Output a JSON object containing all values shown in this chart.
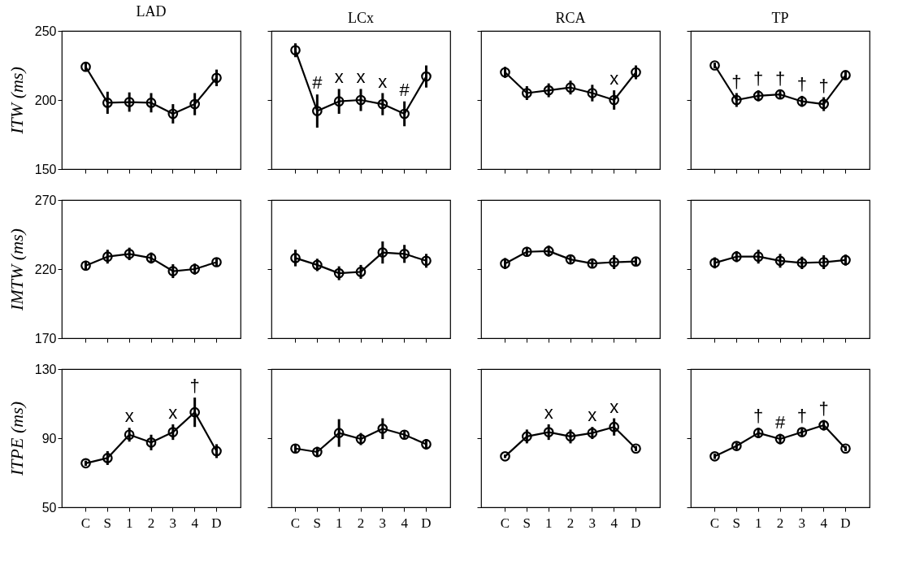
{
  "chart_data": [
    {
      "type": "line",
      "title": "LAD",
      "ylabel": "ITW (ms)",
      "categories": [
        "C",
        "S",
        "1",
        "2",
        "3",
        "4",
        "D"
      ],
      "color": "#000000",
      "marker": "circle",
      "grid": false,
      "tick_labels": "y",
      "ylim": [
        150,
        250
      ],
      "yticks": [
        150,
        200,
        250
      ],
      "values": [
        224,
        198,
        198.5,
        198,
        190,
        197,
        216
      ],
      "errors": [
        3,
        8,
        7,
        7,
        7,
        8,
        6
      ]
    },
    {
      "type": "line",
      "title": "LCx",
      "categories": [
        "C",
        "S",
        "1",
        "2",
        "3",
        "4",
        "D"
      ],
      "color": "#000000",
      "marker": "circle",
      "grid": false,
      "tick_labels": false,
      "ylim": [
        150,
        250
      ],
      "yticks": [
        150,
        200,
        250
      ],
      "values": [
        236,
        192,
        199,
        200,
        197,
        190,
        217
      ],
      "errors": [
        5,
        12,
        9,
        8,
        8,
        9,
        8
      ],
      "annotations": [
        {
          "text": "#",
          "x": "S",
          "y": 192
        },
        {
          "text": "x",
          "x": "1",
          "y": 199
        },
        {
          "text": "x",
          "x": "2",
          "y": 200
        },
        {
          "text": "x",
          "x": "3",
          "y": 197
        },
        {
          "text": "#",
          "x": "4",
          "y": 190
        }
      ]
    },
    {
      "type": "line",
      "title": "RCA",
      "categories": [
        "C",
        "S",
        "1",
        "2",
        "3",
        "4",
        "D"
      ],
      "color": "#000000",
      "marker": "circle",
      "grid": false,
      "tick_labels": false,
      "ylim": [
        150,
        250
      ],
      "yticks": [
        150,
        200,
        250
      ],
      "values": [
        220,
        205,
        207,
        209,
        205,
        200,
        220
      ],
      "errors": [
        4,
        5,
        5,
        5,
        6,
        7,
        5
      ],
      "annotations": [
        {
          "text": "x",
          "x": "4",
          "y": 200
        }
      ]
    },
    {
      "type": "line",
      "title": "TP",
      "categories": [
        "C",
        "S",
        "1",
        "2",
        "3",
        "4",
        "D"
      ],
      "color": "#000000",
      "marker": "circle",
      "grid": false,
      "tick_labels": false,
      "ylim": [
        150,
        250
      ],
      "yticks": [
        150,
        200,
        250
      ],
      "values": [
        225,
        200,
        203,
        204,
        199,
        197,
        218
      ],
      "errors": [
        2,
        5,
        4,
        3,
        4,
        5,
        3
      ],
      "annotations": [
        {
          "text": "†",
          "x": "S",
          "y": 200
        },
        {
          "text": "†",
          "x": "1",
          "y": 203
        },
        {
          "text": "†",
          "x": "2",
          "y": 204
        },
        {
          "text": "†",
          "x": "3",
          "y": 199
        },
        {
          "text": "†",
          "x": "4",
          "y": 197
        }
      ]
    },
    {
      "type": "line",
      "ylabel": "IMTW (ms)",
      "categories": [
        "C",
        "S",
        "1",
        "2",
        "3",
        "4",
        "D"
      ],
      "color": "#000000",
      "marker": "circle",
      "grid": false,
      "tick_labels": "y",
      "ylim": [
        170,
        270
      ],
      "yticks": [
        170,
        220,
        270
      ],
      "values": [
        222.5,
        229,
        231,
        228,
        218.5,
        220,
        225
      ],
      "errors": [
        3.5,
        5,
        4.5,
        4,
        5,
        4,
        3
      ]
    },
    {
      "type": "line",
      "categories": [
        "C",
        "S",
        "1",
        "2",
        "3",
        "4",
        "D"
      ],
      "color": "#000000",
      "marker": "circle",
      "grid": false,
      "tick_labels": false,
      "ylim": [
        170,
        270
      ],
      "yticks": [
        170,
        220,
        270
      ],
      "values": [
        228,
        223,
        217,
        218,
        232,
        231,
        226
      ],
      "errors": [
        6,
        4.5,
        5,
        5,
        8,
        6.5,
        5
      ]
    },
    {
      "type": "line",
      "categories": [
        "C",
        "S",
        "1",
        "2",
        "3",
        "4",
        "D"
      ],
      "color": "#000000",
      "marker": "circle",
      "grid": false,
      "tick_labels": false,
      "ylim": [
        170,
        270
      ],
      "yticks": [
        170,
        220,
        270
      ],
      "values": [
        224,
        232.5,
        233,
        227,
        224,
        225,
        225.5
      ],
      "errors": [
        4,
        3.5,
        4,
        3.5,
        3,
        5,
        3
      ]
    },
    {
      "type": "line",
      "categories": [
        "C",
        "S",
        "1",
        "2",
        "3",
        "4",
        "D"
      ],
      "color": "#000000",
      "marker": "circle",
      "grid": false,
      "tick_labels": false,
      "ylim": [
        170,
        270
      ],
      "yticks": [
        170,
        220,
        270
      ],
      "values": [
        224.5,
        229,
        229,
        226,
        224.5,
        225,
        226.5
      ],
      "errors": [
        4,
        4,
        5,
        5,
        4.5,
        5,
        4
      ]
    },
    {
      "type": "line",
      "ylabel": "ITPE (ms)",
      "categories": [
        "C",
        "S",
        "1",
        "2",
        "3",
        "4",
        "D"
      ],
      "color": "#000000",
      "marker": "circle",
      "grid": false,
      "ylim": [
        50,
        130
      ],
      "yticks": [
        50,
        90,
        130
      ],
      "values": [
        75.5,
        78.5,
        92,
        87.5,
        93.5,
        105,
        82.5
      ],
      "errors": [
        1.5,
        4,
        4,
        4.5,
        4.5,
        8.5,
        4
      ],
      "annotations": [
        {
          "text": "x",
          "x": "1",
          "y": 92
        },
        {
          "text": "x",
          "x": "3",
          "y": 93.5
        },
        {
          "text": "†",
          "x": "4",
          "y": 105
        }
      ]
    },
    {
      "type": "line",
      "categories": [
        "C",
        "S",
        "1",
        "2",
        "3",
        "4",
        "D"
      ],
      "color": "#000000",
      "marker": "circle",
      "grid": false,
      "tick_labels": "x",
      "ylim": [
        50,
        130
      ],
      "yticks": [
        50,
        90,
        130
      ],
      "values": [
        84,
        82,
        93,
        89.5,
        95.5,
        92,
        86.5
      ],
      "errors": [
        2.5,
        3,
        8,
        3.5,
        6,
        2.5,
        3
      ]
    },
    {
      "type": "line",
      "categories": [
        "C",
        "S",
        "1",
        "2",
        "3",
        "4",
        "D"
      ],
      "color": "#000000",
      "marker": "circle",
      "grid": false,
      "tick_labels": "x",
      "ylim": [
        50,
        130
      ],
      "yticks": [
        50,
        90,
        130
      ],
      "values": [
        79.5,
        91,
        93.5,
        91,
        93,
        96.5,
        84
      ],
      "errors": [
        1,
        4,
        4.5,
        4,
        3.5,
        5,
        1.5
      ],
      "annotations": [
        {
          "text": "x",
          "x": "1",
          "y": 93.5
        },
        {
          "text": "x",
          "x": "3",
          "y": 93
        },
        {
          "text": "x",
          "x": "4",
          "y": 96.5
        }
      ]
    },
    {
      "type": "line",
      "categories": [
        "C",
        "S",
        "1",
        "2",
        "3",
        "4",
        "D"
      ],
      "color": "#000000",
      "marker": "circle",
      "grid": false,
      "tick_labels": "x",
      "ylim": [
        50,
        130
      ],
      "yticks": [
        50,
        90,
        130
      ],
      "values": [
        79.5,
        85.5,
        93,
        89.5,
        93.5,
        97.5,
        84
      ],
      "errors": [
        1.5,
        2,
        3,
        3,
        2.5,
        3,
        1.5
      ],
      "annotations": [
        {
          "text": "†",
          "x": "1",
          "y": 93
        },
        {
          "text": "#",
          "x": "2",
          "y": 89.5
        },
        {
          "text": "†",
          "x": "3",
          "y": 93.5
        },
        {
          "text": "†",
          "x": "4",
          "y": 97.5
        }
      ]
    }
  ]
}
